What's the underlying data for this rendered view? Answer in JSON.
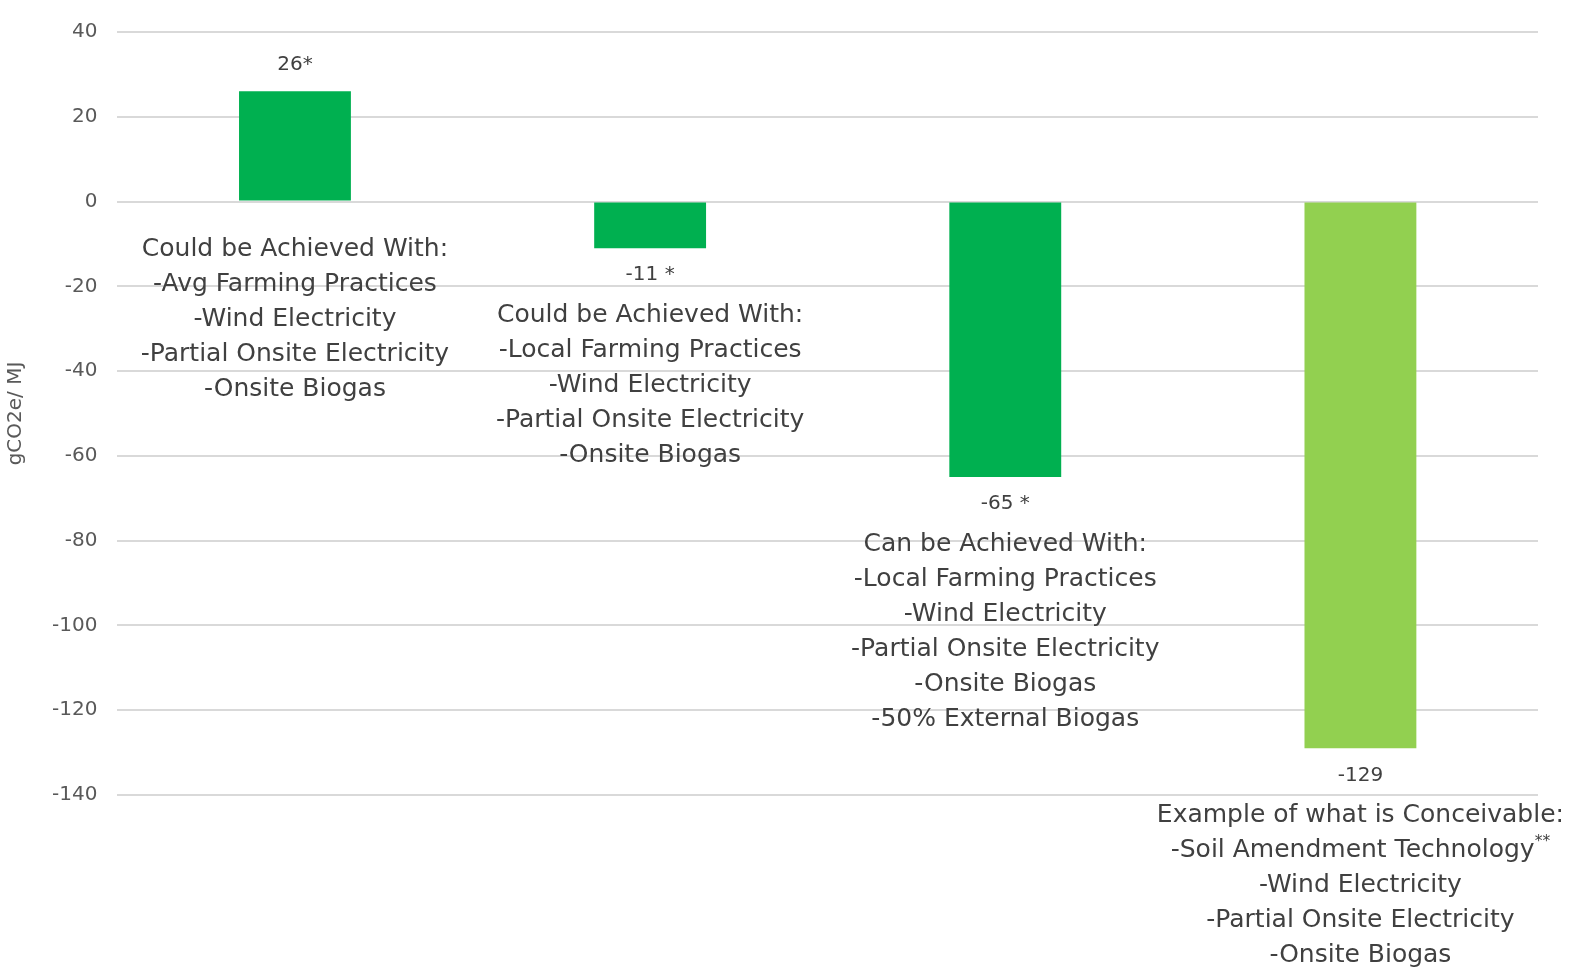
{
  "chart_data": {
    "type": "bar",
    "ylabel": "gCO2e/ MJ",
    "categories": [
      null,
      null,
      null,
      null
    ],
    "values": [
      26,
      -11,
      -65,
      -129
    ],
    "colors": [
      "#00b050",
      "#00b050",
      "#00b050",
      "#92d050"
    ],
    "value_labels": [
      "26*",
      "-11 *",
      "-65 *",
      "-129"
    ],
    "ylim": [
      -140,
      40
    ],
    "yticks": [
      -140,
      -120,
      -100,
      -80,
      -60,
      -40,
      -20,
      0,
      20,
      40
    ],
    "grid": "y",
    "annotations": [
      "Could be Achieved With:\n-Avg Farming Practices\n-Wind Electricity\n-Partial Onsite Electricity\n-Onsite Biogas",
      "Could be Achieved With:\n-Local Farming Practices\n-Wind Electricity\n-Partial Onsite Electricity\n-Onsite Biogas",
      "Can be Achieved With:\n-Local Farming Practices\n-Wind Electricity\n-Partial Onsite Electricity\n-Onsite Biogas\n-50% External Biogas",
      "Example of what is Conceivable:\n-Soil Amendment Technology$^{**}$\n-Wind Electricity\n-Partial Onsite Electricity\n-Onsite Biogas"
    ]
  }
}
